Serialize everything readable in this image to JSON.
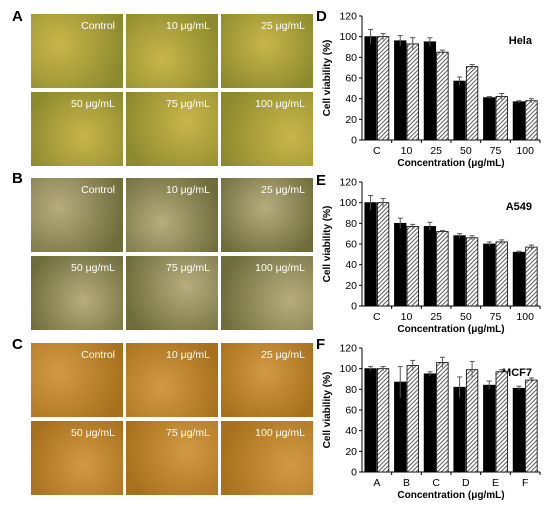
{
  "panel_labels": [
    "A",
    "B",
    "C",
    "D",
    "E",
    "F"
  ],
  "micrographs": {
    "A": {
      "labels": [
        "Control",
        "10 μg/mL",
        "25 μg/mL",
        "50 μg/mL",
        "75 μg/mL",
        "100 μg/mL"
      ],
      "tint": [
        "#8d8a2e",
        "#c9b64a"
      ]
    },
    "B": {
      "labels": [
        "Control",
        "10 μg/mL",
        "25 μg/mL",
        "50 μg/mL",
        "75 μg/mL",
        "100 μg/mL"
      ],
      "tint": [
        "#6f6c3c",
        "#b7ad7d"
      ]
    },
    "C": {
      "labels": [
        "Control",
        "10 μg/mL",
        "25 μg/mL",
        "50 μg/mL",
        "75 μg/mL",
        "100 μg/mL"
      ],
      "tint": [
        "#a7701c",
        "#d39a45"
      ]
    }
  },
  "chart_data": [
    {
      "type": "bar",
      "panel": "D",
      "title": "Hela",
      "categories": [
        "C",
        "10",
        "25",
        "50",
        "75",
        "100"
      ],
      "series": [
        {
          "values": [
            100,
            96,
            95,
            57,
            41,
            37
          ],
          "errors": [
            7,
            5,
            4,
            4,
            1,
            1
          ],
          "fill": "solid"
        },
        {
          "values": [
            100,
            93,
            85,
            71,
            42,
            38
          ],
          "errors": [
            3,
            6,
            2,
            2,
            3,
            2
          ],
          "fill": "hatched"
        }
      ],
      "ylabel": "Cell viability (%)",
      "xlabel": "Concentration (μg/mL)",
      "ylim": [
        0,
        120
      ],
      "yticks": [
        0,
        20,
        40,
        60,
        80,
        100,
        120
      ]
    },
    {
      "type": "bar",
      "panel": "E",
      "title": "A549",
      "categories": [
        "C",
        "10",
        "25",
        "50",
        "75",
        "100"
      ],
      "series": [
        {
          "values": [
            100,
            80,
            77,
            68,
            60,
            52
          ],
          "errors": [
            7,
            5,
            4,
            2,
            2,
            1
          ],
          "fill": "solid"
        },
        {
          "values": [
            100,
            77,
            72,
            66,
            62,
            57
          ],
          "errors": [
            4,
            2,
            1,
            2,
            2,
            2
          ],
          "fill": "hatched"
        }
      ],
      "ylabel": "Cell viability (%)",
      "xlabel": "Concentration (μg/mL)",
      "ylim": [
        0,
        120
      ],
      "yticks": [
        0,
        20,
        40,
        60,
        80,
        100,
        120
      ]
    },
    {
      "type": "bar",
      "panel": "F",
      "title": "MCF7",
      "categories": [
        "A",
        "B",
        "C",
        "D",
        "E",
        "F"
      ],
      "series": [
        {
          "values": [
            100,
            87,
            95,
            82,
            84,
            81
          ],
          "errors": [
            2,
            15,
            2,
            10,
            4,
            2
          ],
          "fill": "solid"
        },
        {
          "values": [
            100,
            103,
            106,
            99,
            97,
            89
          ],
          "errors": [
            2,
            5,
            5,
            8,
            2,
            2
          ],
          "fill": "hatched"
        }
      ],
      "ylabel": "Cell viability (%)",
      "xlabel": "Concentration (μg/mL)",
      "ylim": [
        0,
        120
      ],
      "yticks": [
        0,
        20,
        40,
        60,
        80,
        100,
        120
      ]
    }
  ]
}
